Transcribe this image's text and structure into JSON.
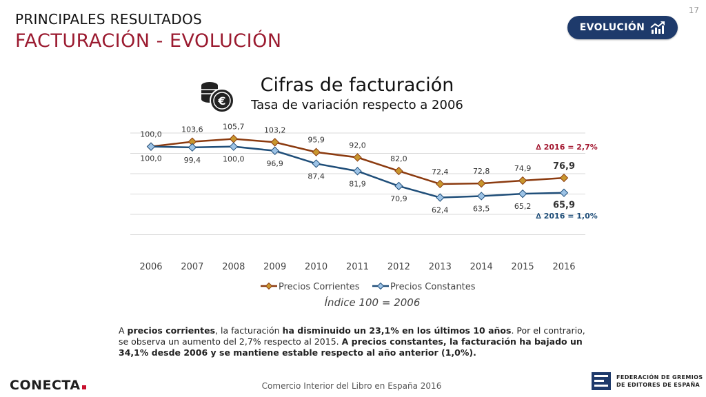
{
  "header": {
    "kicker": "PRINCIPALES RESULTADOS",
    "title": "FACTURACIÓN - EVOLUCIÓN",
    "page_number": "17",
    "badge_label": "EVOLUCIÓN",
    "badge_icon": "trend-up-icon"
  },
  "chart_header": {
    "icon": "coins-euro-icon",
    "title": "Cifras de facturación",
    "subtitle": "Tasa de variación respecto a 2006"
  },
  "chart_data": {
    "type": "line",
    "title": "Cifras de facturación",
    "subtitle": "Tasa de variación respecto a 2006",
    "x": [
      "2006",
      "2007",
      "2008",
      "2009",
      "2010",
      "2011",
      "2012",
      "2013",
      "2014",
      "2015",
      "2016"
    ],
    "ylim": [
      20,
      110
    ],
    "grid": true,
    "legend_position": "bottom",
    "series": [
      {
        "name": "Precios Corrientes",
        "color": "#8b3a0f",
        "marker": "#c8962e",
        "values": [
          100.0,
          103.6,
          105.7,
          103.2,
          95.9,
          92.0,
          82.0,
          72.4,
          72.8,
          74.9,
          76.9
        ],
        "labels": [
          "100,0",
          "103,6",
          "105,7",
          "103,2",
          "95,9",
          "92,0",
          "82,0",
          "72,4",
          "72,8",
          "74,9",
          "76,9"
        ]
      },
      {
        "name": "Precios Constantes",
        "color": "#1f4e79",
        "marker": "#9dc3e6",
        "values": [
          100.0,
          99.4,
          100.0,
          96.9,
          87.4,
          81.9,
          70.9,
          62.4,
          63.5,
          65.2,
          65.9
        ],
        "labels": [
          "100,0",
          "99,4",
          "100,0",
          "96,9",
          "87,4",
          "81,9",
          "70,9",
          "62,4",
          "63,5",
          "65,2",
          "65,9"
        ]
      }
    ],
    "annotations": [
      {
        "text": "∆ 2016 = 2,7%",
        "color": "#a3162f"
      },
      {
        "text": "∆ 2016 = 1,0%",
        "color": "#1f4e79"
      }
    ]
  },
  "index_note": "Índice 100 = 2006",
  "summary": {
    "p1": "A ",
    "b1": "precios corrientes",
    "p2": ", la facturación ",
    "b2": "ha disminuido un 23,1% en los últimos 10 años",
    "p3": ". Por el contrario, se observa un aumento del 2,7% respecto al 2015. ",
    "b3": "A precios constantes, la facturación ha bajado un 34,1% desde 2006 y se mantiene estable respecto al año anterior (1,0%)."
  },
  "footer": {
    "source": "Comercio Interior del Libro en España 2016",
    "brand": "CONECTA",
    "federation_line1": "FEDERACIÓN DE GREMIOS",
    "federation_line2": "DE EDITORES DE ESPAÑA"
  }
}
